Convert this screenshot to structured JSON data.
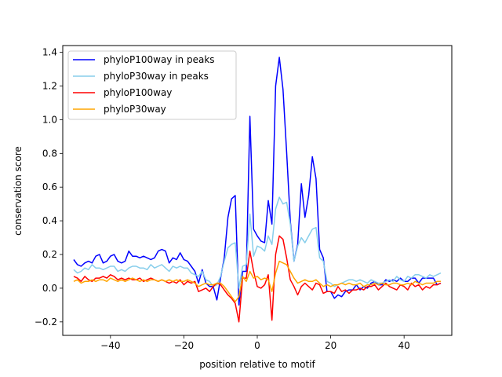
{
  "chart_data": {
    "type": "line",
    "xlabel": "position relative to motif",
    "ylabel": "conservation score",
    "xlim": [
      -53,
      53
    ],
    "ylim": [
      -0.28,
      1.44
    ],
    "xticks": [
      -40,
      -20,
      0,
      20,
      40
    ],
    "xtick_labels": [
      "−40",
      "−20",
      "0",
      "20",
      "40"
    ],
    "yticks": [
      -0.2,
      0.0,
      0.2,
      0.4,
      0.6,
      0.8,
      1.0,
      1.2,
      1.4
    ],
    "ytick_labels": [
      "−0.2",
      "0.0",
      "0.2",
      "0.4",
      "0.6",
      "0.8",
      "1.0",
      "1.2",
      "1.4"
    ],
    "legend_position": "top-left",
    "series": [
      {
        "name": "phyloP100way in peaks",
        "color": "#0000ff",
        "x": [
          -50,
          -49,
          -48,
          -47,
          -46,
          -45,
          -44,
          -43,
          -42,
          -41,
          -40,
          -39,
          -38,
          -37,
          -36,
          -35,
          -34,
          -33,
          -32,
          -31,
          -30,
          -29,
          -28,
          -27,
          -26,
          -25,
          -24,
          -23,
          -22,
          -21,
          -20,
          -19,
          -18,
          -17,
          -16,
          -15,
          -14,
          -13,
          -12,
          -11,
          -10,
          -9,
          -8,
          -7,
          -6,
          -5,
          -4,
          -3,
          -2,
          -1,
          0,
          1,
          2,
          3,
          4,
          5,
          6,
          7,
          8,
          9,
          10,
          11,
          12,
          13,
          14,
          15,
          16,
          17,
          18,
          19,
          20,
          21,
          22,
          23,
          24,
          25,
          26,
          27,
          28,
          29,
          30,
          31,
          32,
          33,
          34,
          35,
          36,
          37,
          38,
          39,
          40,
          41,
          42,
          43,
          44,
          45,
          46,
          47,
          48,
          49,
          50
        ],
        "y": [
          0.17,
          0.14,
          0.13,
          0.15,
          0.16,
          0.15,
          0.19,
          0.2,
          0.15,
          0.16,
          0.19,
          0.2,
          0.16,
          0.15,
          0.16,
          0.22,
          0.19,
          0.19,
          0.18,
          0.19,
          0.18,
          0.17,
          0.18,
          0.22,
          0.23,
          0.22,
          0.15,
          0.18,
          0.17,
          0.21,
          0.17,
          0.16,
          0.13,
          0.1,
          0.03,
          0.11,
          0.03,
          0.01,
          0.01,
          -0.07,
          0.06,
          0.18,
          0.42,
          0.53,
          0.55,
          -0.1,
          0.1,
          0.1,
          1.02,
          0.35,
          0.31,
          0.28,
          0.27,
          0.52,
          0.38,
          1.2,
          1.37,
          1.18,
          0.81,
          0.4,
          0.16,
          0.26,
          0.62,
          0.42,
          0.55,
          0.78,
          0.65,
          0.23,
          0.18,
          -0.02,
          -0.02,
          -0.06,
          -0.04,
          -0.05,
          -0.02,
          -0.01,
          -0.01,
          0.02,
          -0.01,
          0.01,
          0.0,
          0.03,
          0.04,
          0.02,
          0.02,
          0.05,
          0.04,
          0.05,
          0.04,
          0.06,
          0.04,
          0.04,
          0.06,
          0.06,
          0.03,
          0.06,
          0.06,
          0.06,
          0.06,
          0.02,
          0.03
        ]
      },
      {
        "name": "phyloP30way in peaks",
        "color": "#87ceeb",
        "x": [
          -50,
          -49,
          -48,
          -47,
          -46,
          -45,
          -44,
          -43,
          -42,
          -41,
          -40,
          -39,
          -38,
          -37,
          -36,
          -35,
          -34,
          -33,
          -32,
          -31,
          -30,
          -29,
          -28,
          -27,
          -26,
          -25,
          -24,
          -23,
          -22,
          -21,
          -20,
          -19,
          -18,
          -17,
          -16,
          -15,
          -14,
          -13,
          -12,
          -11,
          -10,
          -9,
          -8,
          -7,
          -6,
          -5,
          -4,
          -3,
          -2,
          -1,
          0,
          1,
          2,
          3,
          4,
          5,
          6,
          7,
          8,
          9,
          10,
          11,
          12,
          13,
          14,
          15,
          16,
          17,
          18,
          19,
          20,
          21,
          22,
          23,
          24,
          25,
          26,
          27,
          28,
          29,
          30,
          31,
          32,
          33,
          34,
          35,
          36,
          37,
          38,
          39,
          40,
          41,
          42,
          43,
          44,
          45,
          46,
          47,
          48,
          49,
          50
        ],
        "y": [
          0.11,
          0.09,
          0.1,
          0.12,
          0.11,
          0.14,
          0.12,
          0.12,
          0.11,
          0.12,
          0.13,
          0.13,
          0.1,
          0.11,
          0.1,
          0.12,
          0.13,
          0.13,
          0.12,
          0.12,
          0.11,
          0.14,
          0.12,
          0.13,
          0.14,
          0.12,
          0.1,
          0.13,
          0.12,
          0.13,
          0.12,
          0.12,
          0.09,
          0.08,
          0.07,
          0.1,
          0.05,
          0.04,
          0.01,
          0.02,
          0.07,
          0.16,
          0.24,
          0.26,
          0.27,
          0.0,
          0.13,
          0.14,
          0.44,
          0.19,
          0.25,
          0.24,
          0.22,
          0.31,
          0.26,
          0.47,
          0.54,
          0.5,
          0.51,
          0.38,
          0.16,
          0.25,
          0.3,
          0.27,
          0.31,
          0.35,
          0.36,
          0.18,
          0.16,
          0.04,
          0.03,
          0.01,
          0.02,
          0.03,
          0.04,
          0.05,
          0.05,
          0.04,
          0.05,
          0.04,
          0.03,
          0.05,
          0.04,
          0.03,
          0.03,
          0.04,
          0.05,
          0.04,
          0.07,
          0.05,
          0.04,
          0.07,
          0.06,
          0.08,
          0.08,
          0.07,
          0.06,
          0.08,
          0.07,
          0.08,
          0.09
        ]
      },
      {
        "name": "phyloP100way",
        "color": "#ff0000",
        "x": [
          -50,
          -49,
          -48,
          -47,
          -46,
          -45,
          -44,
          -43,
          -42,
          -41,
          -40,
          -39,
          -38,
          -37,
          -36,
          -35,
          -34,
          -33,
          -32,
          -31,
          -30,
          -29,
          -28,
          -27,
          -26,
          -25,
          -24,
          -23,
          -22,
          -21,
          -20,
          -19,
          -18,
          -17,
          -16,
          -15,
          -14,
          -13,
          -12,
          -11,
          -10,
          -9,
          -8,
          -7,
          -6,
          -5,
          -4,
          -3,
          -2,
          -1,
          0,
          1,
          2,
          3,
          4,
          5,
          6,
          7,
          8,
          9,
          10,
          11,
          12,
          13,
          14,
          15,
          16,
          17,
          18,
          19,
          20,
          21,
          22,
          23,
          24,
          25,
          26,
          27,
          28,
          29,
          30,
          31,
          32,
          33,
          34,
          35,
          36,
          37,
          38,
          39,
          40,
          41,
          42,
          43,
          44,
          45,
          46,
          47,
          48,
          49,
          50
        ],
        "y": [
          0.07,
          0.06,
          0.04,
          0.07,
          0.05,
          0.04,
          0.06,
          0.06,
          0.07,
          0.06,
          0.08,
          0.07,
          0.05,
          0.06,
          0.05,
          0.06,
          0.05,
          0.05,
          0.06,
          0.04,
          0.05,
          0.06,
          0.05,
          0.04,
          0.05,
          0.04,
          0.03,
          0.04,
          0.03,
          0.05,
          0.02,
          0.04,
          0.03,
          0.04,
          -0.02,
          -0.01,
          0.0,
          -0.02,
          0.01,
          0.03,
          0.02,
          -0.01,
          -0.04,
          -0.06,
          -0.09,
          -0.2,
          0.06,
          0.06,
          0.22,
          0.1,
          0.01,
          0.0,
          0.02,
          0.08,
          -0.19,
          0.2,
          0.31,
          0.29,
          0.18,
          0.05,
          0.01,
          -0.04,
          0.01,
          0.03,
          0.01,
          -0.01,
          0.03,
          0.02,
          -0.03,
          -0.02,
          -0.02,
          -0.03,
          0.01,
          -0.02,
          -0.01,
          -0.03,
          -0.01,
          -0.01,
          0.0,
          -0.01,
          0.01,
          0.01,
          0.02,
          -0.01,
          0.01,
          0.03,
          0.01,
          0.0,
          -0.01,
          0.02,
          0.01,
          -0.01,
          0.03,
          0.01,
          0.02,
          -0.01,
          0.01,
          0.0,
          0.02,
          0.02,
          0.03
        ]
      },
      {
        "name": "phyloP30way",
        "color": "#ffa500",
        "x": [
          -50,
          -49,
          -48,
          -47,
          -46,
          -45,
          -44,
          -43,
          -42,
          -41,
          -40,
          -39,
          -38,
          -37,
          -36,
          -35,
          -34,
          -33,
          -32,
          -31,
          -30,
          -29,
          -28,
          -27,
          -26,
          -25,
          -24,
          -23,
          -22,
          -21,
          -20,
          -19,
          -18,
          -17,
          -16,
          -15,
          -14,
          -13,
          -12,
          -11,
          -10,
          -9,
          -8,
          -7,
          -6,
          -5,
          -4,
          -3,
          -2,
          -1,
          0,
          1,
          2,
          3,
          4,
          5,
          6,
          7,
          8,
          9,
          10,
          11,
          12,
          13,
          14,
          15,
          16,
          17,
          18,
          19,
          20,
          21,
          22,
          23,
          24,
          25,
          26,
          27,
          28,
          29,
          30,
          31,
          32,
          33,
          34,
          35,
          36,
          37,
          38,
          39,
          40,
          41,
          42,
          43,
          44,
          45,
          46,
          47,
          48,
          49,
          50
        ],
        "y": [
          0.04,
          0.05,
          0.03,
          0.04,
          0.04,
          0.05,
          0.04,
          0.05,
          0.05,
          0.04,
          0.06,
          0.05,
          0.04,
          0.05,
          0.04,
          0.05,
          0.06,
          0.05,
          0.04,
          0.05,
          0.04,
          0.05,
          0.05,
          0.04,
          0.05,
          0.04,
          0.05,
          0.04,
          0.05,
          0.04,
          0.04,
          0.05,
          0.04,
          0.03,
          0.01,
          0.02,
          0.03,
          0.02,
          0.02,
          0.03,
          0.03,
          0.01,
          -0.02,
          -0.05,
          -0.08,
          -0.05,
          0.07,
          0.04,
          0.1,
          0.06,
          0.07,
          0.05,
          0.06,
          0.05,
          -0.02,
          0.09,
          0.16,
          0.15,
          0.14,
          0.1,
          0.06,
          0.03,
          0.04,
          0.05,
          0.04,
          0.04,
          0.05,
          0.03,
          0.01,
          0.02,
          0.01,
          0.02,
          0.02,
          0.03,
          0.02,
          0.03,
          0.02,
          0.02,
          0.03,
          0.01,
          0.02,
          0.02,
          0.03,
          0.02,
          0.03,
          0.02,
          0.02,
          0.03,
          0.03,
          0.02,
          0.02,
          0.03,
          0.02,
          0.04,
          0.03,
          0.02,
          0.03,
          0.03,
          0.03,
          0.04,
          0.04
        ]
      }
    ]
  }
}
